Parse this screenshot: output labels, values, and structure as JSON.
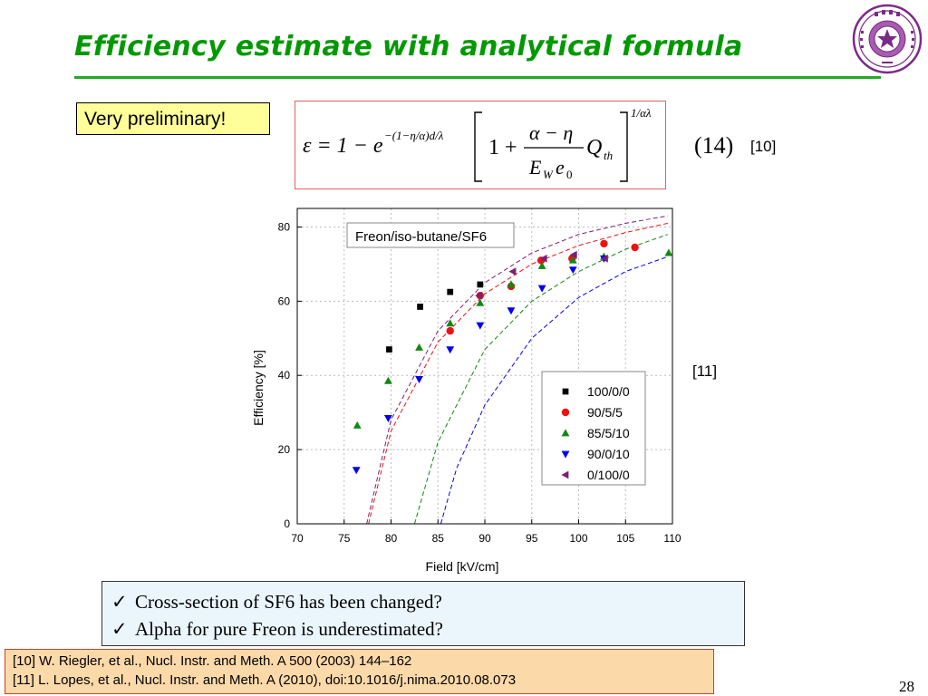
{
  "slide": {
    "title": "Efficiency estimate with analytical formula",
    "badge": "Very preliminary!",
    "equation_number": "(14)",
    "ref_formula": "[10]",
    "ref_chart": "[11]",
    "bullets": [
      {
        "text": "Cross-section of SF6 has been changed?"
      },
      {
        "text": "Alpha for pure Freon is underestimated?"
      }
    ],
    "references": [
      {
        "text": "[10] W. Riegler, et al., Nucl. Instr. and Meth. A 500 (2003) 144–162"
      },
      {
        "text": "[11] L. Lopes, et al., Nucl. Instr. and Meth. A (2010), doi:10.1016/j.nima.2010.08.073"
      }
    ],
    "page_number": "28",
    "colors": {
      "title": "#009900",
      "badge_bg": "#ffff99",
      "bullets_bg": "#eaf6fb",
      "refs_bg": "#fbd9a9",
      "refs_border": "#d04020"
    }
  },
  "formula": {
    "lhs": "ε = 1 − e",
    "exponent": "−(1−η/α)d/λ",
    "one_plus": "1 +",
    "numerator": "α − η",
    "denominator": "E",
    "denominator_sub": "W",
    "denominator_tail": "e",
    "denominator_tail_sub": "0",
    "q": "Q",
    "q_sub": "th",
    "power": "1/αλ"
  },
  "chart_data": {
    "type": "scatter",
    "title": "Freon/iso-butane/SF6",
    "xlabel": "Field [kV/cm]",
    "ylabel": "Efficiency [%]",
    "xlim": [
      70,
      110
    ],
    "ylim": [
      0,
      85
    ],
    "xticks": [
      "70",
      "75",
      "80",
      "85",
      "90",
      "95",
      "100",
      "105",
      "110"
    ],
    "yticks": [
      "0",
      "20",
      "40",
      "60",
      "80"
    ],
    "grid": true,
    "legend_position": "lower-right",
    "series": [
      {
        "name": "100/0/0",
        "marker": "square",
        "color": "#000000",
        "x": [
          79.8,
          83.1,
          86.3,
          89.5
        ],
        "y": [
          47,
          58.5,
          62.5,
          64.5
        ]
      },
      {
        "name": "90/5/5",
        "marker": "circle",
        "color": "#ee1111",
        "x": [
          86.3,
          89.5,
          92.8,
          96,
          99.3,
          102.7,
          106
        ],
        "y": [
          52,
          61.5,
          64,
          71,
          71.5,
          75.5,
          74.5
        ]
      },
      {
        "name": "85/5/10",
        "marker": "triangle-up",
        "color": "#118811",
        "x": [
          76.4,
          79.7,
          83,
          86.3,
          89.5,
          92.8,
          96.1,
          99.4,
          102.7,
          109.6
        ],
        "y": [
          26.5,
          38.5,
          47.5,
          54,
          59.5,
          64.5,
          69.5,
          71,
          72,
          73
        ]
      },
      {
        "name": "90/0/10",
        "marker": "triangle-down",
        "color": "#0000ee",
        "x": [
          76.3,
          79.7,
          83,
          86.3,
          89.5,
          92.8,
          96.1,
          99.4,
          102.7
        ],
        "y": [
          14.5,
          28.5,
          39,
          47,
          53.5,
          57.5,
          63.5,
          68.5,
          71.5
        ]
      },
      {
        "name": "0/100/0",
        "marker": "triangle-left",
        "color": "#7a1f7a",
        "x": [
          89.4,
          93,
          96.3,
          99.5,
          102.8
        ],
        "y": [
          61.5,
          68,
          71.5,
          72.5,
          71.5
        ]
      }
    ],
    "fit_curves": [
      {
        "color": "#ee1111",
        "x": [
          77.6,
          80,
          85,
          90,
          95,
          100,
          105,
          109.5
        ],
        "y": [
          0,
          25,
          49,
          62,
          70,
          75,
          78.5,
          81
        ]
      },
      {
        "color": "#7a1f7a",
        "x": [
          77.4,
          80,
          85,
          90,
          95,
          100,
          105,
          109.5
        ],
        "y": [
          0,
          28,
          52,
          65,
          73,
          78,
          81,
          83
        ]
      },
      {
        "color": "#118811",
        "x": [
          82.5,
          85,
          90,
          95,
          100,
          105,
          109.5
        ],
        "y": [
          0,
          22,
          47,
          60,
          68,
          74,
          78
        ]
      },
      {
        "color": "#0000ee",
        "x": [
          85.3,
          87,
          90,
          95,
          100,
          105,
          109.5
        ],
        "y": [
          0,
          15,
          32,
          50,
          61,
          68,
          72
        ]
      }
    ]
  }
}
